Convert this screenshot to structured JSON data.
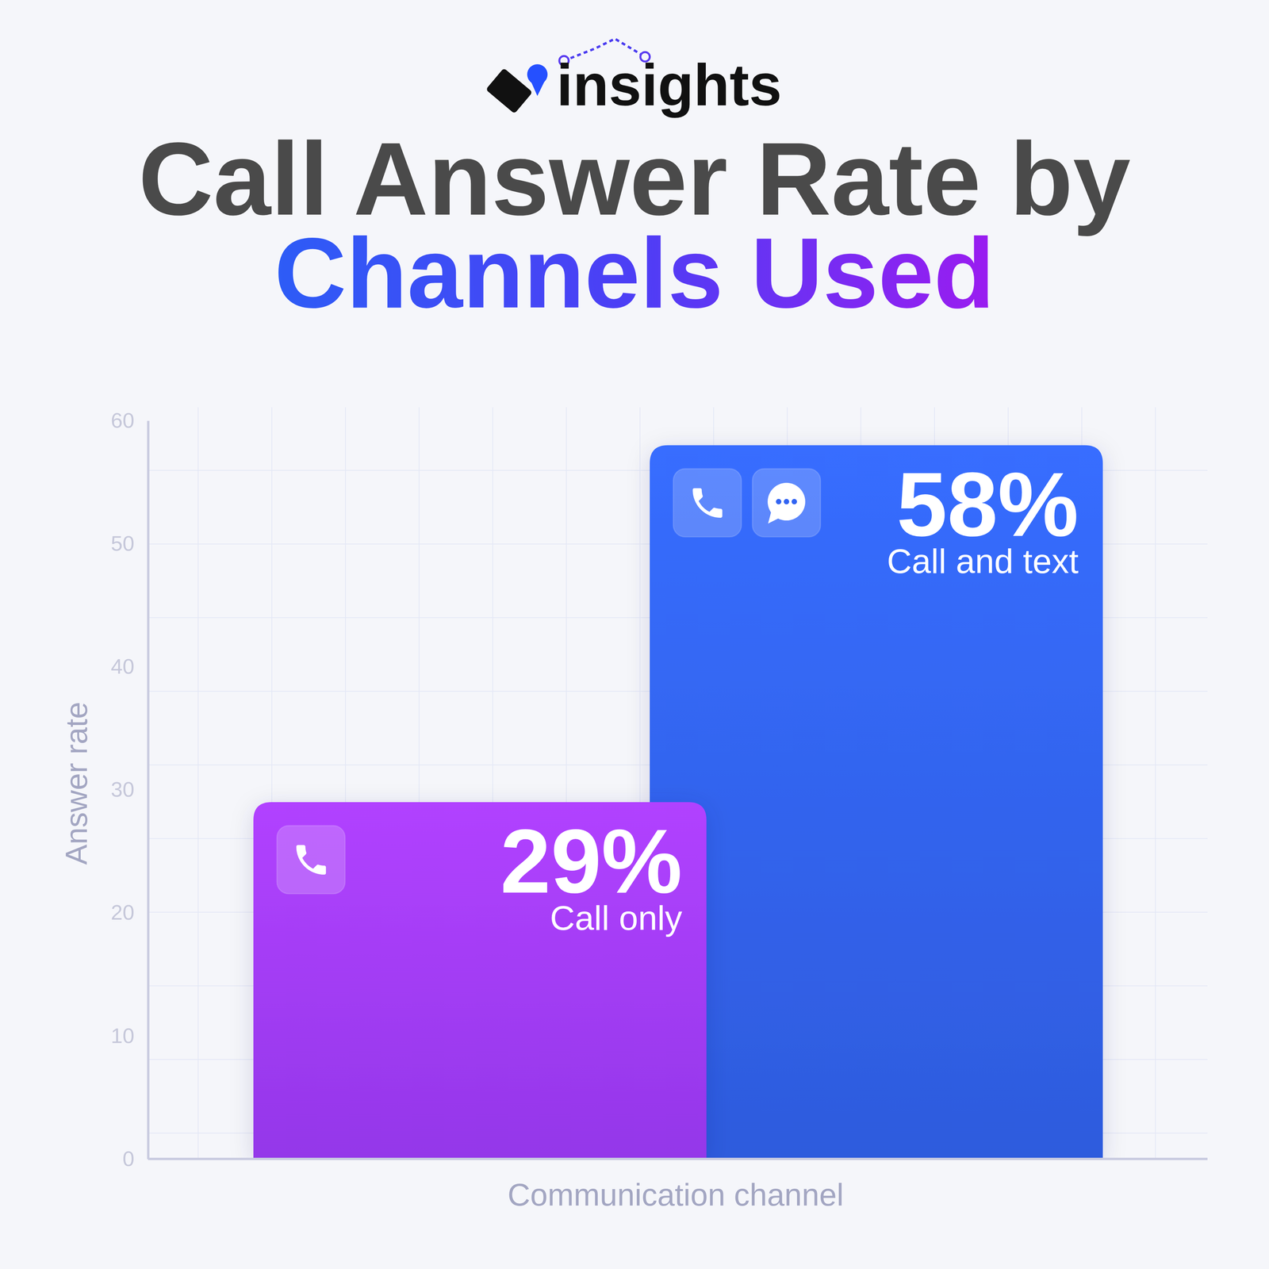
{
  "brand": "insights",
  "chart_data": {
    "type": "bar",
    "title": [
      "Call Answer Rate by",
      "Channels Used"
    ],
    "categories": [
      "Call only",
      "Call and text"
    ],
    "values": [
      29,
      58
    ],
    "value_labels": [
      "29%",
      "58%"
    ],
    "data_labels": true,
    "colors": [
      "#a23cff",
      "#3264f2"
    ],
    "ylim": [
      0,
      60
    ],
    "yticks": [
      0,
      10,
      20,
      30,
      40,
      50,
      60
    ],
    "tick_labels": "y",
    "x_label": "Communication channel",
    "y_label": "Answer rate"
  }
}
